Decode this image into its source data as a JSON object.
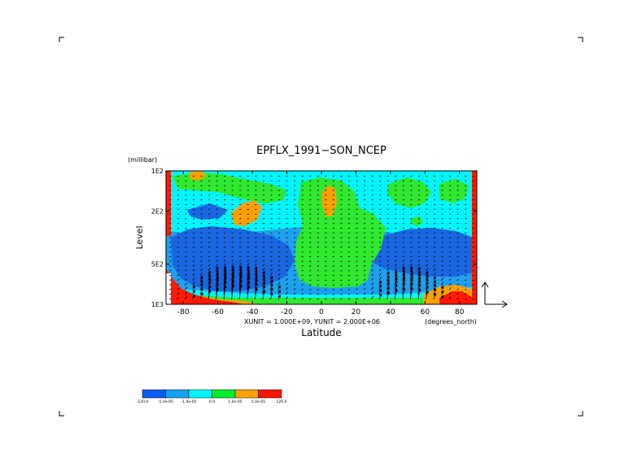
{
  "chart_data": {
    "type": "heatmap",
    "title": "EPFLX_1991−SON_NCEP",
    "xlabel": "Latitude",
    "x_units": "(degrees_north)",
    "ylabel": "Level",
    "y_units": "(millibar)",
    "y_scale": "log",
    "xlim": [
      -90,
      90
    ],
    "ylim": [
      1000,
      100
    ],
    "x_ticks": [
      -80,
      -60,
      -40,
      -20,
      0,
      20,
      40,
      60,
      80
    ],
    "x_tick_labels": [
      "-80",
      "-60",
      "-40",
      "-20",
      "0",
      "20",
      "40",
      "60",
      "80"
    ],
    "y_ticks": [
      100,
      200,
      500,
      1000
    ],
    "y_tick_labels": [
      "1E2",
      "2E2",
      "5E2",
      "1E3"
    ],
    "vector_unit_label": "XUNIT = 1.000E+09, YUNIT = 2.000E+06",
    "legend_placement": "bottom-left",
    "colorbar": {
      "levels": [
        "-120.0",
        "-5.0e-05",
        "-1.0e-05",
        "0.0",
        "1.0e-05",
        "5.0e-05",
        "120.0"
      ],
      "colors": [
        "#0a5cf2",
        "#17a0ee",
        "#00f5ff",
        "#00ee2e",
        "#ffa200",
        "#ff1200"
      ]
    },
    "colors": {
      "dark_blue": "#1a66e0",
      "light_blue": "#1ea0ee",
      "cyan": "#00f5ff",
      "green": "#30e830",
      "orange": "#ffa000",
      "red": "#ff1a00"
    }
  }
}
